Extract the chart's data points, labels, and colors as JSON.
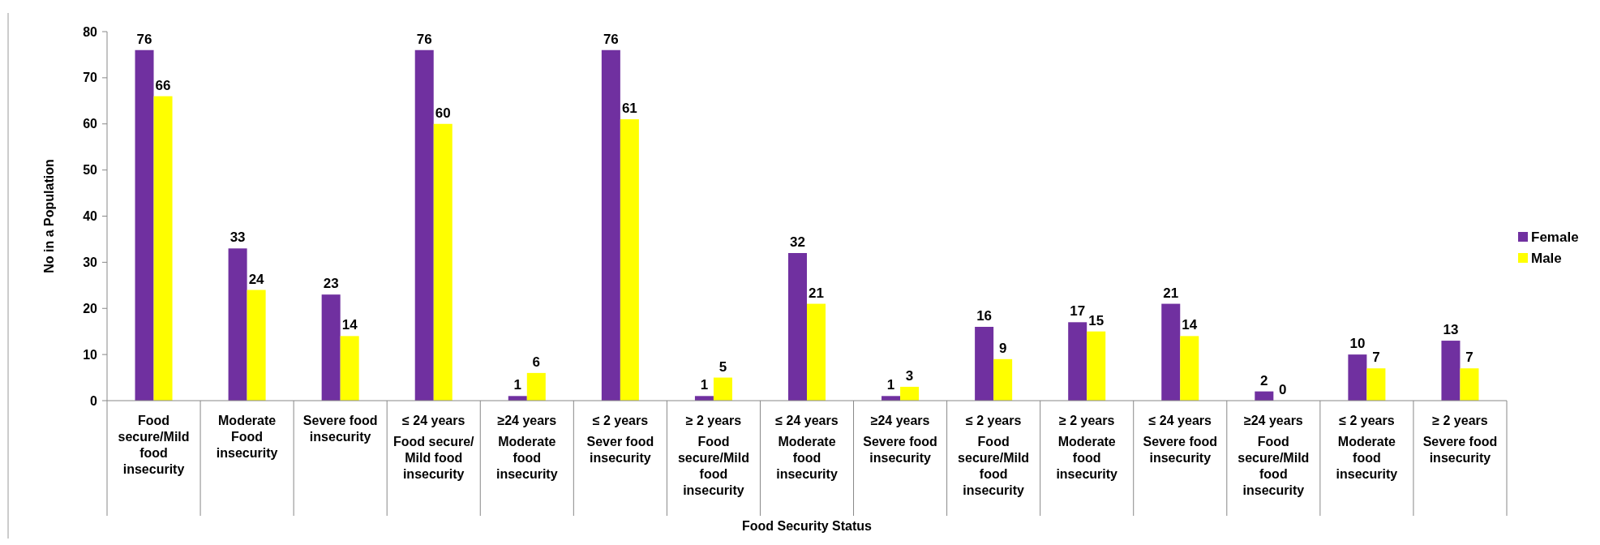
{
  "chart_data": {
    "type": "bar",
    "xlabel": "Food Security Status",
    "ylabel": "No in a Population",
    "categories": [
      "Food secure/Mild food insecurity",
      "Moderate Food insecurity",
      "Severe food insecurity",
      "≤ 24 years\nFood secure/ Mild food insecurity",
      "≥24 years\nModerate food insecurity",
      "≤ 2 years\nSever food insecurity",
      "≥ 2 years\nFood secure/Mild food insecurity",
      "≤ 24 years\nModerate food insecurity",
      "≥24 years\nSevere food insecurity",
      "≤ 2 years\nFood secure/Mild food insecurity",
      "≥ 2 years\nModerate food insecurity",
      "≤ 24 years\nSevere food insecurity",
      "≥24 years\nFood secure/Mild food insecurity",
      "≤ 2 years\nModerate food insecurity",
      "≥ 2 years\nSevere food insecurity"
    ],
    "series": [
      {
        "name": "Female",
        "color": "#7030a0",
        "values": [
          76,
          33,
          23,
          76,
          1,
          76,
          1,
          32,
          1,
          16,
          17,
          21,
          2,
          10,
          13
        ]
      },
      {
        "name": "Male",
        "color": "#ffff00",
        "values": [
          66,
          24,
          14,
          60,
          6,
          61,
          5,
          21,
          3,
          9,
          15,
          14,
          0,
          7,
          7
        ]
      }
    ],
    "ylim": [
      0,
      80
    ],
    "yticks": [
      0,
      10,
      20,
      30,
      40,
      50,
      60,
      70,
      80
    ],
    "grid": false,
    "legend": "right",
    "data_labels": true
  }
}
